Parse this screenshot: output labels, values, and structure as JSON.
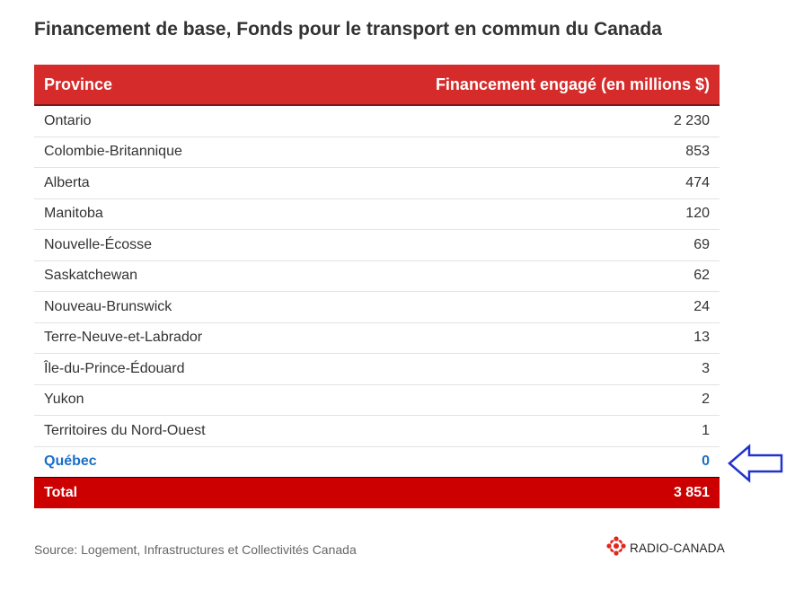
{
  "title": "Financement de base, Fonds pour le transport en commun du Canada",
  "table": {
    "headers": {
      "province": "Province",
      "funding": "Financement engagé (en millions $)"
    },
    "rows": [
      {
        "province": "Ontario",
        "value": "2 230"
      },
      {
        "province": "Colombie-Britannique",
        "value": "853"
      },
      {
        "province": "Alberta",
        "value": "474"
      },
      {
        "province": "Manitoba",
        "value": "120"
      },
      {
        "province": "Nouvelle-Écosse",
        "value": "69"
      },
      {
        "province": "Saskatchewan",
        "value": "62"
      },
      {
        "province": "Nouveau-Brunswick",
        "value": "24"
      },
      {
        "province": "Terre-Neuve-et-Labrador",
        "value": "13"
      },
      {
        "province": "Île-du-Prince-Édouard",
        "value": "3"
      },
      {
        "province": "Yukon",
        "value": "2"
      },
      {
        "province": "Territoires du Nord-Ouest",
        "value": "1"
      },
      {
        "province": "Québec",
        "value": "0"
      }
    ],
    "total": {
      "label": "Total",
      "value": "3 851"
    }
  },
  "source": "Source: Logement, Infrastructures et Collectivités Canada",
  "brand": {
    "name": "RADIO-CANADA",
    "icon": "radio-canada-logo-icon"
  },
  "annotation": {
    "icon": "arrow-left-icon"
  },
  "colors": {
    "header_red": "#d52b2b",
    "total_red": "#cc0000",
    "highlight_blue": "#1a6fc7",
    "arrow_blue": "#2233cc"
  }
}
